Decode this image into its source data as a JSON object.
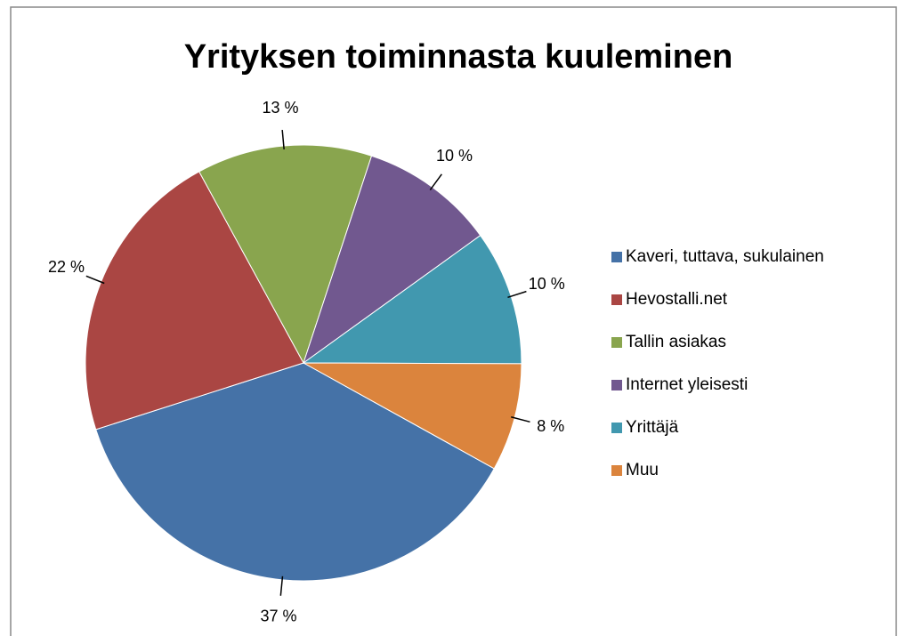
{
  "chart_data": {
    "type": "pie",
    "title": "Yrityksen toiminnasta kuuleminen",
    "categories": [
      "Kaveri, tuttava, sukulainen",
      "Hevostalli.net",
      "Tallin asiakas",
      "Internet yleisesti",
      "Yrittäjä",
      "Muu"
    ],
    "values": [
      37,
      22,
      13,
      10,
      10,
      8
    ],
    "value_labels": [
      "37 %",
      "22 %",
      "13 %",
      "10 %",
      "10 %",
      "8 %"
    ],
    "colors": [
      "#4572a7",
      "#aa4643",
      "#89a54e",
      "#71588f",
      "#4198af",
      "#db843d"
    ],
    "legend": "right"
  }
}
